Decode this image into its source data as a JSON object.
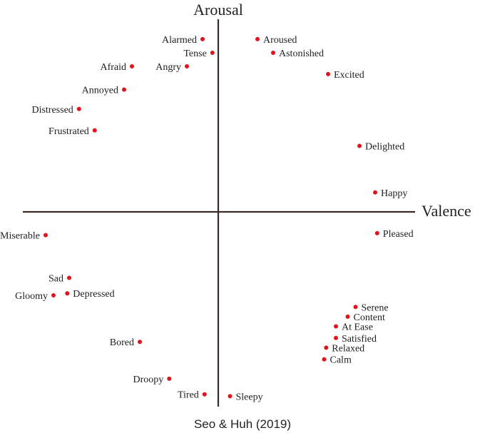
{
  "caption": "Seo & Huh (2019)",
  "chart_data": {
    "type": "scatter",
    "xlabel": "Valence",
    "ylabel": "Arousal",
    "xlim": [
      -1,
      1
    ],
    "ylim": [
      -1,
      1
    ],
    "grid": false,
    "legend": "none",
    "point_color": "#e0141a",
    "points": [
      {
        "label": "Alarmed",
        "x": -0.08,
        "y": 0.89,
        "side": "left"
      },
      {
        "label": "Tense",
        "x": -0.03,
        "y": 0.82,
        "side": "left"
      },
      {
        "label": "Aroused",
        "x": 0.2,
        "y": 0.89,
        "side": "right"
      },
      {
        "label": "Astonished",
        "x": 0.28,
        "y": 0.82,
        "side": "right"
      },
      {
        "label": "Afraid",
        "x": -0.44,
        "y": 0.75,
        "side": "left"
      },
      {
        "label": "Angry",
        "x": -0.16,
        "y": 0.75,
        "side": "left"
      },
      {
        "label": "Excited",
        "x": 0.56,
        "y": 0.71,
        "side": "right"
      },
      {
        "label": "Annoyed",
        "x": -0.48,
        "y": 0.63,
        "side": "left"
      },
      {
        "label": "Distressed",
        "x": -0.71,
        "y": 0.53,
        "side": "left"
      },
      {
        "label": "Frustrated",
        "x": -0.63,
        "y": 0.42,
        "side": "left"
      },
      {
        "label": "Delighted",
        "x": 0.72,
        "y": 0.34,
        "side": "right"
      },
      {
        "label": "Happy",
        "x": 0.8,
        "y": 0.1,
        "side": "right"
      },
      {
        "label": "Pleased",
        "x": 0.81,
        "y": -0.11,
        "side": "right"
      },
      {
        "label": "Miserable",
        "x": -0.88,
        "y": -0.12,
        "side": "left"
      },
      {
        "label": "Sad",
        "x": -0.76,
        "y": -0.34,
        "side": "left"
      },
      {
        "label": "Gloomy",
        "x": -0.84,
        "y": -0.43,
        "side": "left"
      },
      {
        "label": "Depressed",
        "x": -0.77,
        "y": -0.42,
        "side": "right"
      },
      {
        "label": "Serene",
        "x": 0.7,
        "y": -0.49,
        "side": "right"
      },
      {
        "label": "Content",
        "x": 0.66,
        "y": -0.54,
        "side": "right"
      },
      {
        "label": "At Ease",
        "x": 0.6,
        "y": -0.59,
        "side": "right"
      },
      {
        "label": "Satisfied",
        "x": 0.6,
        "y": -0.65,
        "side": "right"
      },
      {
        "label": "Relaxed",
        "x": 0.55,
        "y": -0.7,
        "side": "right"
      },
      {
        "label": "Calm",
        "x": 0.54,
        "y": -0.76,
        "side": "right"
      },
      {
        "label": "Bored",
        "x": -0.4,
        "y": -0.67,
        "side": "left"
      },
      {
        "label": "Droopy",
        "x": -0.25,
        "y": -0.86,
        "side": "left"
      },
      {
        "label": "Tired",
        "x": -0.07,
        "y": -0.94,
        "side": "left"
      },
      {
        "label": "Sleepy",
        "x": 0.06,
        "y": -0.95,
        "side": "right"
      }
    ]
  }
}
